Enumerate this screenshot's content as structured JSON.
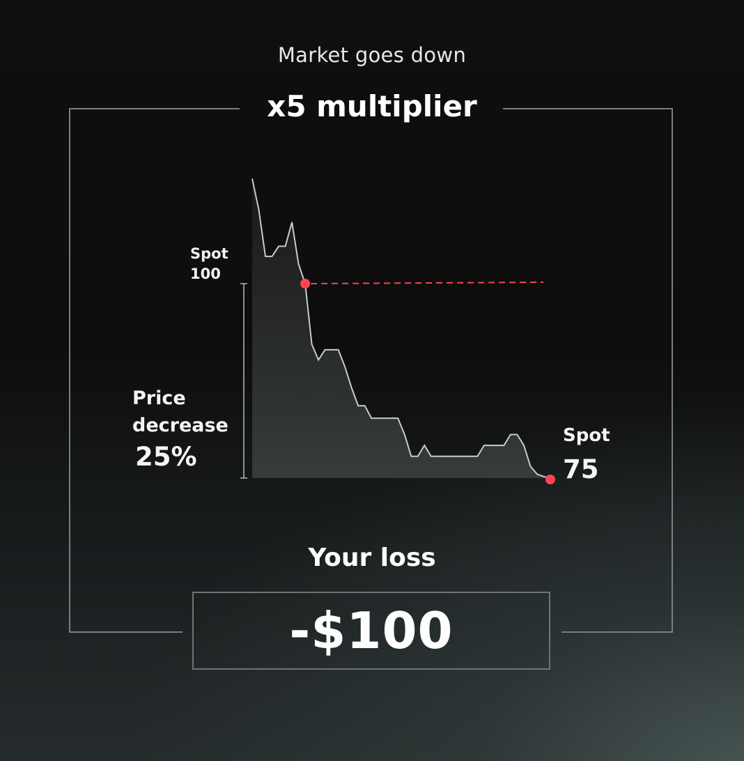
{
  "header": {
    "subtitle": "Market goes down",
    "title": "x5 multiplier"
  },
  "chart": {
    "spot_start_label": "Spot",
    "spot_start_value": "100",
    "change_line1": "Price",
    "change_line2": "decrease",
    "change_pct": "25%",
    "spot_end_label": "Spot",
    "spot_end_value": "75",
    "colors": {
      "line": "#c9cccc",
      "marker": "#ff444f",
      "dashed": "#ff444f"
    }
  },
  "chart_data": {
    "type": "line",
    "title": "",
    "xlabel": "",
    "ylabel": "",
    "start_spot": 100,
    "end_spot": 75,
    "price_change_percent": -25,
    "series": [
      {
        "x": [
          0,
          1,
          2,
          3,
          4,
          5,
          6,
          7,
          8,
          9,
          10,
          11,
          12,
          13,
          14,
          15,
          16,
          17,
          18,
          19,
          20,
          21,
          22,
          23,
          24,
          25,
          26,
          27,
          28,
          29,
          30,
          31,
          32,
          33,
          34,
          35,
          36,
          37,
          38,
          39,
          40,
          41,
          42,
          43,
          44,
          45
        ],
        "values": [
          113.5,
          109.5,
          103.5,
          103.5,
          104.8,
          104.8,
          107.9,
          102.5,
          100,
          92.2,
          90.2,
          91.5,
          91.5,
          91.5,
          89.3,
          86.6,
          84.3,
          84.3,
          82.7,
          82.7,
          82.7,
          82.7,
          82.7,
          80.6,
          77.8,
          77.8,
          79.2,
          77.8,
          77.8,
          77.8,
          77.8,
          77.8,
          77.8,
          77.8,
          77.8,
          79.2,
          79.2,
          79.2,
          79.2,
          80.6,
          80.6,
          79.2,
          76.5,
          75.5,
          75.2,
          75
        ]
      }
    ]
  },
  "result": {
    "loss_label": "Your loss",
    "loss_value": "-$100"
  }
}
